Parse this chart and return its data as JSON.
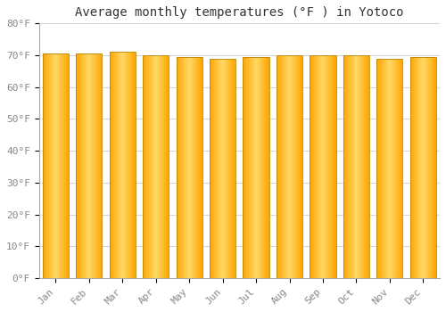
{
  "title": "Average monthly temperatures (°F ) in Yotoco",
  "months": [
    "Jan",
    "Feb",
    "Mar",
    "Apr",
    "May",
    "Jun",
    "Jul",
    "Aug",
    "Sep",
    "Oct",
    "Nov",
    "Dec"
  ],
  "values": [
    70.5,
    70.5,
    71.0,
    70.0,
    69.5,
    69.0,
    69.5,
    70.0,
    70.0,
    70.0,
    69.0,
    69.5
  ],
  "bar_color_light": "#FFD966",
  "bar_color_dark": "#FFA500",
  "bar_edge_color": "#B8860B",
  "background_color": "#FFFFFF",
  "grid_color": "#CCCCCC",
  "ylim": [
    0,
    80
  ],
  "yticks": [
    0,
    10,
    20,
    30,
    40,
    50,
    60,
    70,
    80
  ],
  "ytick_labels": [
    "0°F",
    "10°F",
    "20°F",
    "30°F",
    "40°F",
    "50°F",
    "60°F",
    "70°F",
    "80°F"
  ],
  "title_fontsize": 10,
  "tick_fontsize": 8,
  "font_family": "monospace",
  "bar_width": 0.78
}
